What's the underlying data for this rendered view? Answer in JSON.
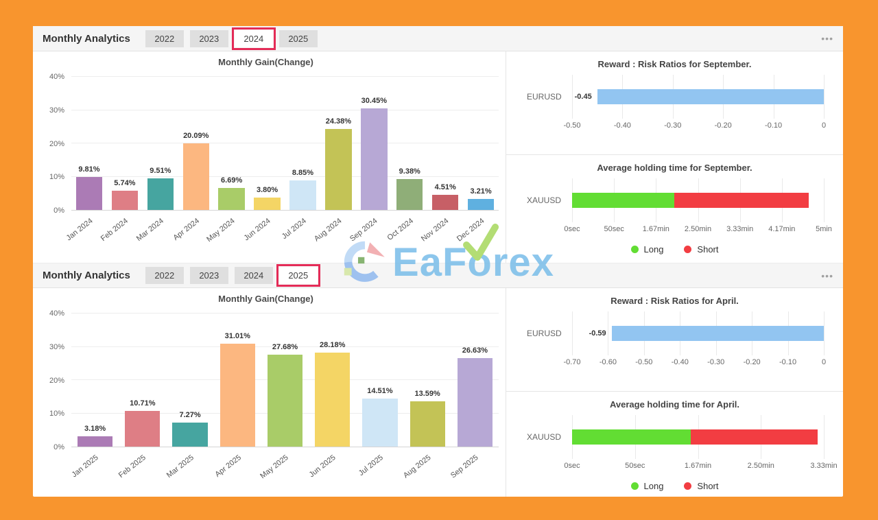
{
  "colors": {
    "background_orange": "#f8952e",
    "tab_highlight_red": "#e42b57",
    "rr_bar_blue": "#92c5f1",
    "long_green": "#62dd33",
    "short_red": "#f23d42",
    "bar_palette": [
      "#ab7bb5",
      "#de7e85",
      "#46a5a0",
      "#fcb780",
      "#a9cc68",
      "#f4d565",
      "#cfe6f6",
      "#c3c356",
      "#b7a8d5",
      "#8fae78",
      "#c75f66",
      "#5fb0e0"
    ]
  },
  "icons": {
    "menu": "•••"
  },
  "watermark": {
    "text_start": "EaF",
    "text_o": "o",
    "text_end": "rex"
  },
  "sections": [
    {
      "header": {
        "title": "Monthly Analytics",
        "tabs": [
          "2022",
          "2023",
          "2024",
          "2025"
        ],
        "active_tab": "2024"
      },
      "gain": {
        "title": "Monthly Gain(Change)",
        "ymax": 40,
        "yticks": [
          "0%",
          "10%",
          "20%",
          "30%",
          "40%"
        ],
        "categories": [
          "Jan 2024",
          "Feb 2024",
          "Mar 2024",
          "Apr 2024",
          "May 2024",
          "Jun 2024",
          "Jul 2024",
          "Aug 2024",
          "Sep 2024",
          "Oct 2024",
          "Nov 2024",
          "Dec 2024"
        ],
        "values": [
          9.81,
          5.74,
          9.51,
          20.09,
          6.69,
          3.8,
          8.85,
          24.38,
          30.45,
          9.38,
          4.51,
          3.21
        ],
        "labels": [
          "9.81%",
          "5.74%",
          "9.51%",
          "20.09%",
          "6.69%",
          "3.80%",
          "8.85%",
          "24.38%",
          "30.45%",
          "9.38%",
          "4.51%",
          "3.21%"
        ]
      },
      "rr": {
        "title": "Reward : Risk Ratios for September.",
        "row_label": "EURUSD",
        "value": -0.45,
        "value_label": "-0.45",
        "min": -0.5,
        "max": 0,
        "ticks": [
          "-0.50",
          "-0.40",
          "-0.30",
          "-0.20",
          "-0.10",
          "0"
        ]
      },
      "holding": {
        "title": "Average holding time for September.",
        "row_label": "XAUUSD",
        "min": 0,
        "max": 5,
        "ticks": [
          "0sec",
          "50sec",
          "1.67min",
          "2.50min",
          "3.33min",
          "4.17min",
          "5min"
        ],
        "segments": [
          {
            "name": "Long",
            "from": 0,
            "to": 2.03
          },
          {
            "name": "Short",
            "from": 2.03,
            "to": 4.7
          }
        ],
        "legend": [
          "Long",
          "Short"
        ]
      }
    },
    {
      "header": {
        "title": "Monthly Analytics",
        "tabs": [
          "2022",
          "2023",
          "2024",
          "2025"
        ],
        "active_tab": "2025"
      },
      "gain": {
        "title": "Monthly Gain(Change)",
        "ymax": 40,
        "yticks": [
          "0%",
          "10%",
          "20%",
          "30%",
          "40%"
        ],
        "categories": [
          "Jan 2025",
          "Feb 2025",
          "Mar 2025",
          "Apr 2025",
          "May 2025",
          "Jun 2025",
          "Jul 2025",
          "Aug 2025",
          "Sep 2025"
        ],
        "values": [
          3.18,
          10.71,
          7.27,
          31.01,
          27.68,
          28.18,
          14.51,
          13.59,
          26.63
        ],
        "labels": [
          "3.18%",
          "10.71%",
          "7.27%",
          "31.01%",
          "27.68%",
          "28.18%",
          "14.51%",
          "13.59%",
          "26.63%"
        ]
      },
      "rr": {
        "title": "Reward : Risk Ratios for April.",
        "row_label": "EURUSD",
        "value": -0.59,
        "value_label": "-0.59",
        "min": -0.7,
        "max": 0,
        "ticks": [
          "-0.70",
          "-0.60",
          "-0.50",
          "-0.40",
          "-0.30",
          "-0.20",
          "-0.10",
          "0"
        ]
      },
      "holding": {
        "title": "Average holding time for April.",
        "row_label": "XAUUSD",
        "min": 0,
        "max": 3.33,
        "ticks": [
          "0sec",
          "50sec",
          "1.67min",
          "2.50min",
          "3.33min"
        ],
        "segments": [
          {
            "name": "Long",
            "from": 0,
            "to": 1.57
          },
          {
            "name": "Short",
            "from": 1.57,
            "to": 3.25
          }
        ],
        "legend": [
          "Long",
          "Short"
        ]
      }
    }
  ],
  "chart_data": [
    {
      "type": "bar",
      "title": "Monthly Gain(Change)",
      "categories": [
        "Jan 2024",
        "Feb 2024",
        "Mar 2024",
        "Apr 2024",
        "May 2024",
        "Jun 2024",
        "Jul 2024",
        "Aug 2024",
        "Sep 2024",
        "Oct 2024",
        "Nov 2024",
        "Dec 2024"
      ],
      "values": [
        9.81,
        5.74,
        9.51,
        20.09,
        6.69,
        3.8,
        8.85,
        24.38,
        30.45,
        9.38,
        4.51,
        3.21
      ],
      "xlabel": "",
      "ylabel": "%",
      "ylim": [
        0,
        40
      ],
      "grid": true
    },
    {
      "type": "bar",
      "orientation": "horizontal",
      "title": "Reward : Risk Ratios for September.",
      "categories": [
        "EURUSD"
      ],
      "values": [
        -0.45
      ],
      "xlim": [
        -0.5,
        0
      ],
      "grid": true
    },
    {
      "type": "bar",
      "orientation": "horizontal",
      "stacked": true,
      "title": "Average holding time for September.",
      "categories": [
        "XAUUSD"
      ],
      "series": [
        {
          "name": "Long",
          "values": [
            2.03
          ]
        },
        {
          "name": "Short",
          "values": [
            2.67
          ]
        }
      ],
      "xlim": [
        0,
        5
      ],
      "unit": "min",
      "legend_position": "bottom"
    },
    {
      "type": "bar",
      "title": "Monthly Gain(Change)",
      "categories": [
        "Jan 2025",
        "Feb 2025",
        "Mar 2025",
        "Apr 2025",
        "May 2025",
        "Jun 2025",
        "Jul 2025",
        "Aug 2025",
        "Sep 2025"
      ],
      "values": [
        3.18,
        10.71,
        7.27,
        31.01,
        27.68,
        28.18,
        14.51,
        13.59,
        26.63
      ],
      "xlabel": "",
      "ylabel": "%",
      "ylim": [
        0,
        40
      ],
      "grid": true
    },
    {
      "type": "bar",
      "orientation": "horizontal",
      "title": "Reward : Risk Ratios for April.",
      "categories": [
        "EURUSD"
      ],
      "values": [
        -0.59
      ],
      "xlim": [
        -0.7,
        0
      ],
      "grid": true
    },
    {
      "type": "bar",
      "orientation": "horizontal",
      "stacked": true,
      "title": "Average holding time for April.",
      "categories": [
        "XAUUSD"
      ],
      "series": [
        {
          "name": "Long",
          "values": [
            1.57
          ]
        },
        {
          "name": "Short",
          "values": [
            1.68
          ]
        }
      ],
      "xlim": [
        0,
        3.33
      ],
      "unit": "min",
      "legend_position": "bottom"
    }
  ]
}
